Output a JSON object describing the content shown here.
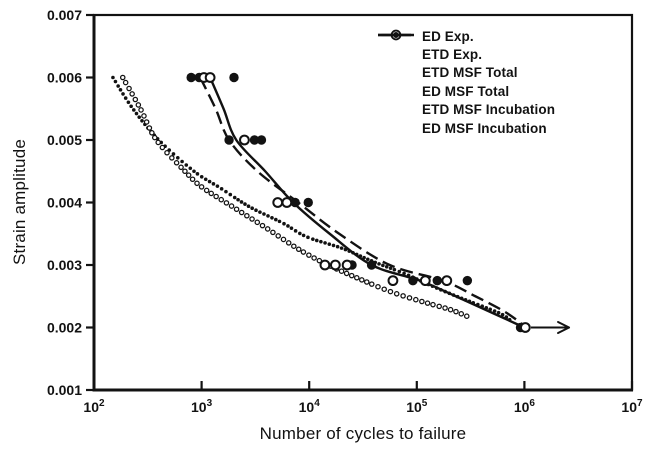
{
  "figure": {
    "background": "#ffffff",
    "ink": "#121212"
  },
  "chart_data": {
    "type": "scatter",
    "title": "",
    "xlabel": "Number of cycles to failure",
    "ylabel": "Strain amplitude",
    "x_scale": "log",
    "xlim": [
      100,
      10000000
    ],
    "ylim": [
      0.001,
      0.007
    ],
    "grid": false,
    "legend_position": "top-right-inside",
    "x_ticks": [
      {
        "value": 100,
        "base": "10",
        "exp": "2"
      },
      {
        "value": 1000,
        "base": "10",
        "exp": "3"
      },
      {
        "value": 10000,
        "base": "10",
        "exp": "4"
      },
      {
        "value": 100000,
        "base": "10",
        "exp": "5"
      },
      {
        "value": 1000000,
        "base": "10",
        "exp": "6"
      },
      {
        "value": 10000000,
        "base": "10",
        "exp": "7"
      }
    ],
    "y_ticks": [
      {
        "value": 0.007,
        "label": "0.007"
      },
      {
        "value": 0.006,
        "label": "0.006"
      },
      {
        "value": 0.005,
        "label": "0.005"
      },
      {
        "value": 0.004,
        "label": "0.004"
      },
      {
        "value": 0.003,
        "label": "0.003"
      },
      {
        "value": 0.002,
        "label": "0.002"
      },
      {
        "value": 0.001,
        "label": "0.001"
      }
    ],
    "series": [
      {
        "name": "ED Exp.",
        "kind": "scatter",
        "marker": "filled-circle",
        "points": [
          [
            800,
            0.006
          ],
          [
            950,
            0.006
          ],
          [
            2000,
            0.006
          ],
          [
            1800,
            0.005
          ],
          [
            3100,
            0.005
          ],
          [
            3600,
            0.005
          ],
          [
            7400,
            0.004
          ],
          [
            9800,
            0.004
          ],
          [
            25000,
            0.003
          ],
          [
            38000,
            0.003
          ],
          [
            92000,
            0.00275
          ],
          [
            155000,
            0.00275
          ],
          [
            295000,
            0.00275
          ],
          [
            920000,
            0.002
          ]
        ]
      },
      {
        "name": "ETD Exp.",
        "kind": "scatter",
        "marker": "open-circle",
        "points": [
          [
            1050,
            0.006
          ],
          [
            1200,
            0.006
          ],
          [
            2500,
            0.005
          ],
          [
            5100,
            0.004
          ],
          [
            6200,
            0.004
          ],
          [
            14000,
            0.003
          ],
          [
            17500,
            0.003
          ],
          [
            22500,
            0.003
          ],
          [
            60000,
            0.00275
          ],
          [
            120000,
            0.00275
          ],
          [
            190000,
            0.00275
          ],
          [
            1020000,
            0.002
          ]
        ]
      },
      {
        "name": "ETD MSF Total",
        "kind": "line",
        "style": "solid",
        "marker": "solid-line",
        "points": [
          [
            1200,
            0.006
          ],
          [
            1600,
            0.0055
          ],
          [
            2100,
            0.005
          ],
          [
            3900,
            0.0045
          ],
          [
            7100,
            0.004
          ],
          [
            15500,
            0.0035
          ],
          [
            38000,
            0.003
          ],
          [
            107000,
            0.00275
          ],
          [
            230000,
            0.0025
          ],
          [
            480000,
            0.00225
          ],
          [
            1000000,
            0.002
          ]
        ]
      },
      {
        "name": "ED MSF Total",
        "kind": "line",
        "style": "dashed",
        "marker": "dashed-line",
        "points": [
          [
            970,
            0.006
          ],
          [
            1350,
            0.0055
          ],
          [
            1800,
            0.005
          ],
          [
            3300,
            0.0045
          ],
          [
            7900,
            0.004
          ],
          [
            19000,
            0.0035
          ],
          [
            56000,
            0.003
          ],
          [
            175000,
            0.00275
          ],
          [
            350000,
            0.0025
          ],
          [
            660000,
            0.00225
          ],
          [
            1050000,
            0.002
          ]
        ]
      },
      {
        "name": "ETD MSF Incubation",
        "kind": "dotted-curve",
        "marker": "small-open-circle",
        "points": [
          [
            185,
            0.006
          ],
          [
            270,
            0.0055
          ],
          [
            380,
            0.005
          ],
          [
            700,
            0.0045
          ],
          [
            1000,
            0.00425
          ],
          [
            1950,
            0.00393
          ],
          [
            4000,
            0.00359
          ],
          [
            8200,
            0.00324
          ],
          [
            15000,
            0.003
          ],
          [
            30000,
            0.00277
          ],
          [
            60000,
            0.00256
          ],
          [
            120000,
            0.0024
          ],
          [
            210000,
            0.00228
          ],
          [
            320000,
            0.00215
          ]
        ]
      },
      {
        "name": "ED MSF Incubation",
        "kind": "dotted-curve",
        "marker": "small-filled-circle",
        "points": [
          [
            150,
            0.006
          ],
          [
            230,
            0.0055
          ],
          [
            400,
            0.005
          ],
          [
            850,
            0.0045
          ],
          [
            1500,
            0.00423
          ],
          [
            2800,
            0.00393
          ],
          [
            5700,
            0.00367
          ],
          [
            9500,
            0.00345
          ],
          [
            20000,
            0.00327
          ],
          [
            40000,
            0.00305
          ],
          [
            80000,
            0.00285
          ],
          [
            140000,
            0.00266
          ],
          [
            250000,
            0.00248
          ],
          [
            420000,
            0.00233
          ],
          [
            620000,
            0.00221
          ],
          [
            760000,
            0.0021
          ]
        ]
      }
    ],
    "runout_arrow": {
      "strain": 0.002,
      "from_cycles": 1150000,
      "to_cycles": 2600000
    }
  }
}
